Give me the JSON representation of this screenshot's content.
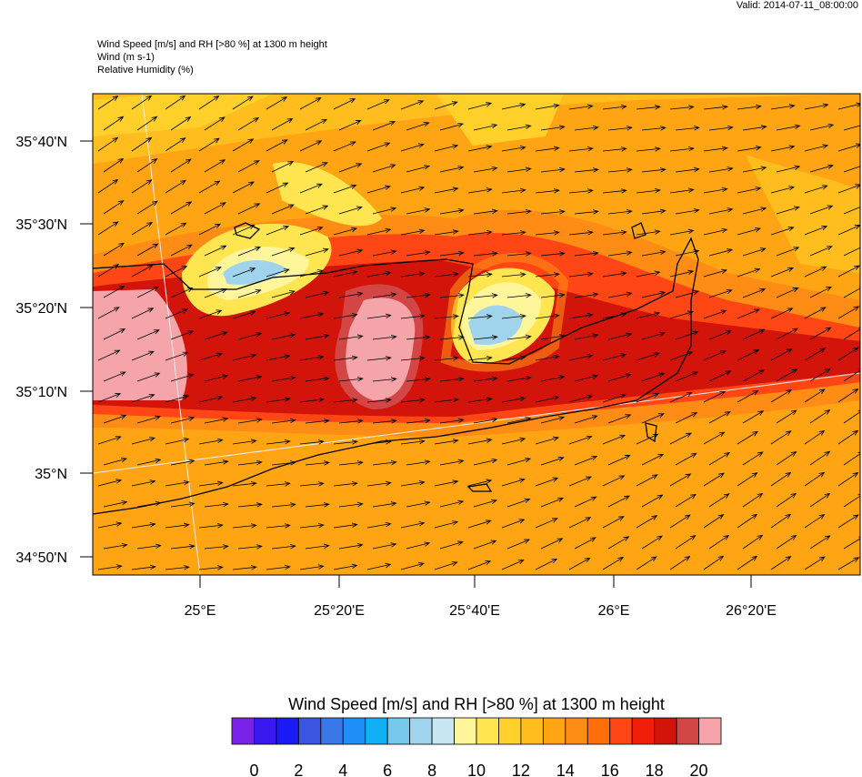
{
  "valid": "Valid: 2014-07-11_08:00:00",
  "header": [
    "Wind Speed [m/s] and RH [>80 %] at 1300 m height",
    "Wind   (m s-1)",
    "Relative Humidity   (%)"
  ],
  "lat_labels": [
    "35°40'N",
    "35°30'N",
    "35°20'N",
    "35°10'N",
    "35°N",
    "34°50'N"
  ],
  "lon_labels": [
    "25°E",
    "25°20'E",
    "25°40'E",
    "26°E",
    "26°20'E"
  ],
  "colorbar": {
    "title": "Wind Speed [m/s] and RH [>80 %] at 1300 m height",
    "colors": [
      "#7b22e8",
      "#3a18f0",
      "#1a1af5",
      "#3a55e0",
      "#3a78e8",
      "#1e90f5",
      "#10b0f5",
      "#78c8ec",
      "#a0d4ec",
      "#c8e6f2",
      "#fff59a",
      "#ffe650",
      "#ffd02a",
      "#ffbe1e",
      "#ffa514",
      "#ff8c14",
      "#ff6e0a",
      "#ff4614",
      "#f01e0a",
      "#d2140a",
      "#d24646",
      "#f5a5aa"
    ],
    "labels": [
      0,
      2,
      4,
      6,
      8,
      10,
      12,
      14,
      16,
      18,
      20
    ]
  }
}
